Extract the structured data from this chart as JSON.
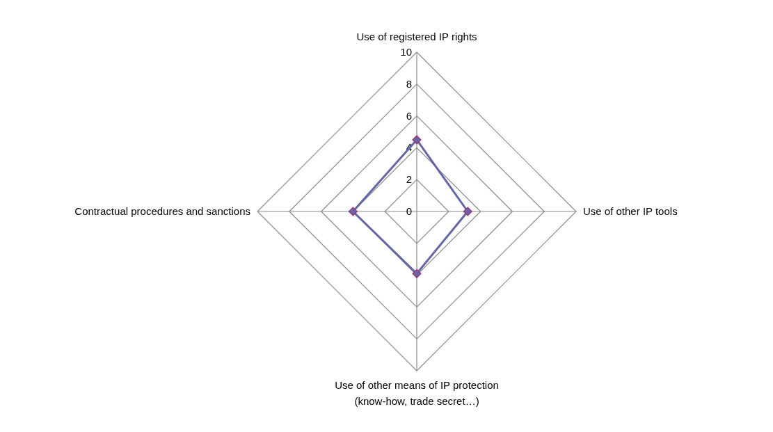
{
  "chart_data": {
    "type": "radar",
    "categories": [
      "Use of registered IP rights",
      "Use of other IP tools",
      "Use of other means of IP protection\n(know-how,  trade secret…)",
      "Contractual procedures and sanctions"
    ],
    "series": [
      {
        "color": "#6466a6",
        "values": [
          4.5,
          3.2,
          3.9,
          4.0
        ]
      }
    ],
    "ylim": [
      0,
      10
    ],
    "yticks": [
      0,
      2,
      4,
      6,
      8,
      10
    ],
    "grid": true,
    "marker": "diamond"
  }
}
